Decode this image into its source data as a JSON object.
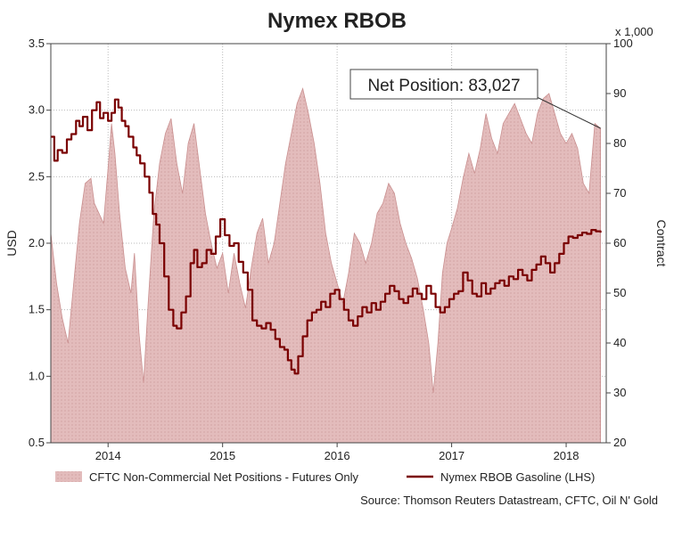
{
  "chart_data": {
    "type": "line",
    "title": "Nymex RBOB",
    "left_axis": {
      "label": "USD",
      "min": 0.5,
      "max": 3.5,
      "ticks": [
        "0.5",
        "1.0",
        "1.5",
        "2.0",
        "2.5",
        "3.0",
        "3.5"
      ]
    },
    "right_axis": {
      "label": "Contract",
      "multiplier_label": "x 1,000",
      "min": 20,
      "max": 100,
      "ticks": [
        "20",
        "30",
        "40",
        "50",
        "60",
        "70",
        "80",
        "90",
        "100"
      ]
    },
    "x_axis": {
      "min": 2013.5,
      "max": 2018.35,
      "ticks": [
        "2014",
        "2015",
        "2016",
        "2017",
        "2018"
      ],
      "tick_values": [
        2014,
        2015,
        2016,
        2017,
        2018
      ]
    },
    "grid": true,
    "legend_position": "bottom",
    "series": [
      {
        "name": "CFTC Non-Commercial Net Positions - Futures Only",
        "kind": "area",
        "axis": "right",
        "color": "#d9a7a7",
        "points": [
          [
            2013.5,
            62
          ],
          [
            2013.55,
            52
          ],
          [
            2013.6,
            45
          ],
          [
            2013.65,
            40
          ],
          [
            2013.7,
            52
          ],
          [
            2013.75,
            64
          ],
          [
            2013.8,
            72
          ],
          [
            2013.85,
            73
          ],
          [
            2013.88,
            68
          ],
          [
            2013.92,
            66
          ],
          [
            2013.96,
            64
          ],
          [
            2014.0,
            75
          ],
          [
            2014.03,
            84
          ],
          [
            2014.06,
            78
          ],
          [
            2014.1,
            66
          ],
          [
            2014.15,
            55
          ],
          [
            2014.2,
            50
          ],
          [
            2014.23,
            58
          ],
          [
            2014.27,
            42
          ],
          [
            2014.31,
            32
          ],
          [
            2014.35,
            48
          ],
          [
            2014.4,
            66
          ],
          [
            2014.45,
            76
          ],
          [
            2014.5,
            82
          ],
          [
            2014.55,
            85
          ],
          [
            2014.6,
            76
          ],
          [
            2014.65,
            70
          ],
          [
            2014.7,
            80
          ],
          [
            2014.75,
            84
          ],
          [
            2014.8,
            75
          ],
          [
            2014.85,
            66
          ],
          [
            2014.9,
            60
          ],
          [
            2014.95,
            55
          ],
          [
            2015.0,
            58
          ],
          [
            2015.05,
            50
          ],
          [
            2015.1,
            58
          ],
          [
            2015.15,
            52
          ],
          [
            2015.2,
            47
          ],
          [
            2015.25,
            55
          ],
          [
            2015.3,
            62
          ],
          [
            2015.35,
            65
          ],
          [
            2015.4,
            56
          ],
          [
            2015.45,
            60
          ],
          [
            2015.5,
            68
          ],
          [
            2015.55,
            76
          ],
          [
            2015.6,
            82
          ],
          [
            2015.65,
            88
          ],
          [
            2015.7,
            91
          ],
          [
            2015.75,
            86
          ],
          [
            2015.8,
            80
          ],
          [
            2015.85,
            72
          ],
          [
            2015.9,
            62
          ],
          [
            2015.95,
            56
          ],
          [
            2016.0,
            52
          ],
          [
            2016.05,
            48
          ],
          [
            2016.1,
            54
          ],
          [
            2016.15,
            62
          ],
          [
            2016.2,
            60
          ],
          [
            2016.25,
            56
          ],
          [
            2016.3,
            60
          ],
          [
            2016.35,
            66
          ],
          [
            2016.4,
            68
          ],
          [
            2016.45,
            72
          ],
          [
            2016.5,
            70
          ],
          [
            2016.55,
            64
          ],
          [
            2016.6,
            60
          ],
          [
            2016.65,
            57
          ],
          [
            2016.7,
            53
          ],
          [
            2016.75,
            47
          ],
          [
            2016.8,
            40
          ],
          [
            2016.84,
            30
          ],
          [
            2016.88,
            40
          ],
          [
            2016.92,
            54
          ],
          [
            2016.96,
            60
          ],
          [
            2017.0,
            63
          ],
          [
            2017.05,
            67
          ],
          [
            2017.1,
            73
          ],
          [
            2017.15,
            78
          ],
          [
            2017.2,
            74
          ],
          [
            2017.25,
            79
          ],
          [
            2017.3,
            86
          ],
          [
            2017.35,
            81
          ],
          [
            2017.4,
            78
          ],
          [
            2017.45,
            84
          ],
          [
            2017.5,
            86
          ],
          [
            2017.55,
            88
          ],
          [
            2017.6,
            85
          ],
          [
            2017.65,
            82
          ],
          [
            2017.7,
            80
          ],
          [
            2017.75,
            86
          ],
          [
            2017.8,
            89
          ],
          [
            2017.85,
            90
          ],
          [
            2017.9,
            86
          ],
          [
            2017.95,
            82
          ],
          [
            2018.0,
            80
          ],
          [
            2018.05,
            82
          ],
          [
            2018.1,
            79
          ],
          [
            2018.15,
            72
          ],
          [
            2018.2,
            70
          ],
          [
            2018.25,
            84
          ],
          [
            2018.3,
            83.027
          ]
        ]
      },
      {
        "name": "Nymex RBOB Gasoline (LHS)",
        "kind": "line",
        "axis": "left",
        "color": "#7a0000",
        "points": [
          [
            2013.5,
            2.8
          ],
          [
            2013.53,
            2.62
          ],
          [
            2013.56,
            2.7
          ],
          [
            2013.6,
            2.68
          ],
          [
            2013.64,
            2.78
          ],
          [
            2013.68,
            2.82
          ],
          [
            2013.72,
            2.92
          ],
          [
            2013.75,
            2.88
          ],
          [
            2013.78,
            2.95
          ],
          [
            2013.82,
            2.85
          ],
          [
            2013.86,
            3.0
          ],
          [
            2013.9,
            3.06
          ],
          [
            2013.93,
            2.94
          ],
          [
            2013.96,
            2.98
          ],
          [
            2014.0,
            2.92
          ],
          [
            2014.03,
            2.98
          ],
          [
            2014.06,
            3.08
          ],
          [
            2014.09,
            3.02
          ],
          [
            2014.12,
            2.92
          ],
          [
            2014.15,
            2.88
          ],
          [
            2014.18,
            2.8
          ],
          [
            2014.22,
            2.72
          ],
          [
            2014.25,
            2.66
          ],
          [
            2014.28,
            2.6
          ],
          [
            2014.32,
            2.5
          ],
          [
            2014.36,
            2.38
          ],
          [
            2014.39,
            2.22
          ],
          [
            2014.42,
            2.14
          ],
          [
            2014.45,
            2.0
          ],
          [
            2014.49,
            1.75
          ],
          [
            2014.53,
            1.5
          ],
          [
            2014.57,
            1.38
          ],
          [
            2014.6,
            1.36
          ],
          [
            2014.64,
            1.48
          ],
          [
            2014.68,
            1.6
          ],
          [
            2014.72,
            1.85
          ],
          [
            2014.75,
            1.95
          ],
          [
            2014.78,
            1.82
          ],
          [
            2014.82,
            1.85
          ],
          [
            2014.86,
            1.95
          ],
          [
            2014.9,
            1.92
          ],
          [
            2014.94,
            2.05
          ],
          [
            2014.98,
            2.18
          ],
          [
            2015.02,
            2.06
          ],
          [
            2015.06,
            1.98
          ],
          [
            2015.1,
            2.0
          ],
          [
            2015.14,
            1.86
          ],
          [
            2015.18,
            1.78
          ],
          [
            2015.22,
            1.65
          ],
          [
            2015.26,
            1.42
          ],
          [
            2015.3,
            1.38
          ],
          [
            2015.34,
            1.36
          ],
          [
            2015.38,
            1.4
          ],
          [
            2015.42,
            1.35
          ],
          [
            2015.46,
            1.28
          ],
          [
            2015.5,
            1.22
          ],
          [
            2015.54,
            1.2
          ],
          [
            2015.57,
            1.12
          ],
          [
            2015.6,
            1.05
          ],
          [
            2015.63,
            1.02
          ],
          [
            2015.66,
            1.15
          ],
          [
            2015.7,
            1.3
          ],
          [
            2015.74,
            1.42
          ],
          [
            2015.78,
            1.48
          ],
          [
            2015.82,
            1.5
          ],
          [
            2015.86,
            1.56
          ],
          [
            2015.9,
            1.52
          ],
          [
            2015.94,
            1.62
          ],
          [
            2015.98,
            1.65
          ],
          [
            2016.02,
            1.58
          ],
          [
            2016.06,
            1.5
          ],
          [
            2016.1,
            1.42
          ],
          [
            2016.14,
            1.38
          ],
          [
            2016.18,
            1.45
          ],
          [
            2016.22,
            1.52
          ],
          [
            2016.26,
            1.48
          ],
          [
            2016.3,
            1.55
          ],
          [
            2016.34,
            1.5
          ],
          [
            2016.38,
            1.56
          ],
          [
            2016.42,
            1.62
          ],
          [
            2016.46,
            1.68
          ],
          [
            2016.5,
            1.64
          ],
          [
            2016.54,
            1.58
          ],
          [
            2016.58,
            1.55
          ],
          [
            2016.62,
            1.6
          ],
          [
            2016.66,
            1.66
          ],
          [
            2016.7,
            1.62
          ],
          [
            2016.74,
            1.58
          ],
          [
            2016.78,
            1.68
          ],
          [
            2016.82,
            1.62
          ],
          [
            2016.86,
            1.52
          ],
          [
            2016.9,
            1.48
          ],
          [
            2016.94,
            1.52
          ],
          [
            2016.98,
            1.58
          ],
          [
            2017.02,
            1.62
          ],
          [
            2017.06,
            1.64
          ],
          [
            2017.1,
            1.78
          ],
          [
            2017.14,
            1.72
          ],
          [
            2017.18,
            1.62
          ],
          [
            2017.22,
            1.6
          ],
          [
            2017.26,
            1.7
          ],
          [
            2017.3,
            1.62
          ],
          [
            2017.34,
            1.66
          ],
          [
            2017.38,
            1.7
          ],
          [
            2017.42,
            1.72
          ],
          [
            2017.46,
            1.68
          ],
          [
            2017.5,
            1.75
          ],
          [
            2017.54,
            1.73
          ],
          [
            2017.58,
            1.8
          ],
          [
            2017.62,
            1.76
          ],
          [
            2017.66,
            1.72
          ],
          [
            2017.7,
            1.8
          ],
          [
            2017.74,
            1.84
          ],
          [
            2017.78,
            1.9
          ],
          [
            2017.82,
            1.85
          ],
          [
            2017.86,
            1.78
          ],
          [
            2017.9,
            1.85
          ],
          [
            2017.94,
            1.92
          ],
          [
            2017.98,
            2.0
          ],
          [
            2018.02,
            2.05
          ],
          [
            2018.06,
            2.04
          ],
          [
            2018.1,
            2.06
          ],
          [
            2018.14,
            2.08
          ],
          [
            2018.18,
            2.07
          ],
          [
            2018.22,
            2.1
          ],
          [
            2018.26,
            2.09
          ],
          [
            2018.3,
            2.08
          ]
        ]
      }
    ],
    "annotation": {
      "text": "Net Position: 83,027",
      "target": [
        2018.3,
        83.027
      ],
      "axis": "right"
    },
    "source": "Source: Thomson Reuters Datastream, CFTC, Oil N' Gold"
  }
}
